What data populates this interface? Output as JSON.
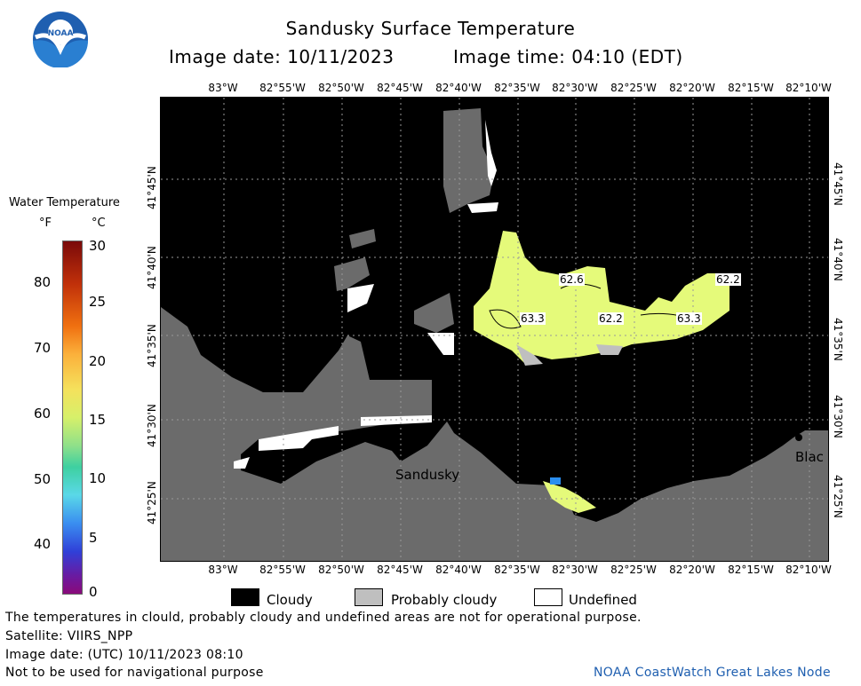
{
  "header": {
    "title": "Sandusky Surface Temperature",
    "image_date": "Image date: 10/11/2023",
    "image_time": "Image time: 04:10 (EDT)"
  },
  "logo": {
    "text": "NOAA"
  },
  "colorbar": {
    "title": "Water Temperature",
    "unit_f": "°F",
    "unit_c": "°C",
    "f_ticks": [
      "80",
      "70",
      "60",
      "50",
      "40"
    ],
    "c_ticks": [
      "30",
      "25",
      "20",
      "15",
      "10",
      "5",
      "0"
    ]
  },
  "map": {
    "lon_labels": [
      "83°W",
      "82°55'W",
      "82°50'W",
      "82°45'W",
      "82°40'W",
      "82°35'W",
      "82°30'W",
      "82°25'W",
      "82°20'W",
      "82°15'W",
      "82°10'W"
    ],
    "lat_labels": [
      "41°45'N",
      "41°40'N",
      "41°35'N",
      "41°30'N",
      "41°25'N"
    ],
    "place_sandusky": "Sandusky",
    "place_blac": "Blac",
    "contour_labels": [
      "62.6",
      "63.3",
      "62.2",
      "63.3",
      "62.2"
    ]
  },
  "legend": {
    "cloudy": "Cloudy",
    "probably_cloudy": "Probably cloudy",
    "undefined": "Undefined",
    "colors": {
      "cloudy": "#000000",
      "probably_cloudy": "#bfbfbf",
      "undefined": "#ffffff",
      "land": "#6b6b6b",
      "water_warm": "#e5fa7a"
    }
  },
  "footer": {
    "disclaimer": "The temperatures in clould, probably cloudy and undefined areas are not for operational purpose.",
    "satellite": "Satellite: VIIRS_NPP",
    "utc_date": "Image date: (UTC) 10/11/2023  08:10",
    "nav": "Not to be used for navigational purpose",
    "credit": "NOAA CoastWatch Great Lakes Node"
  }
}
